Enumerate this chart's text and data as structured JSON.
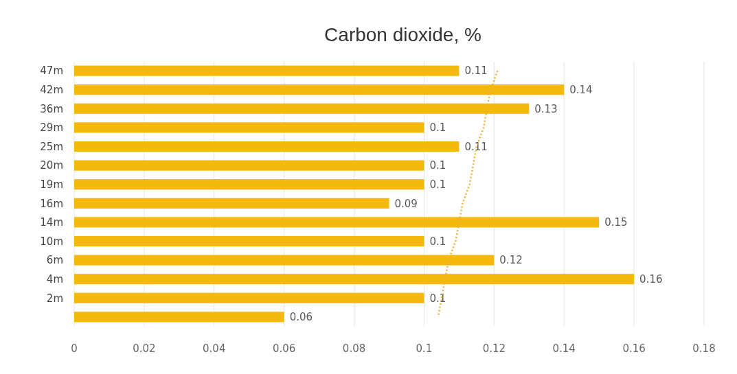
{
  "chart_data": {
    "type": "bar",
    "orientation": "horizontal",
    "title": "Carbon dioxide, %",
    "categories": [
      "47m",
      "42m",
      "36m",
      "29m",
      "25m",
      "20m",
      "19m",
      "16m",
      "14m",
      "10m",
      "6m",
      "4m",
      "2m",
      null
    ],
    "series": [
      {
        "color": "#f5b80c",
        "values": [
          0.11,
          0.14,
          0.13,
          0.1,
          0.11,
          0.1,
          0.1,
          0.09,
          0.15,
          0.1,
          0.12,
          0.16,
          0.1,
          0.06
        ],
        "value_labels": [
          "0.11",
          "0.14",
          "0.13",
          "0.1",
          "0.11",
          "0.1",
          "0.1",
          "0.09",
          "0.15",
          "0.1",
          "0.12",
          "0.16",
          "0.1",
          "0.06"
        ]
      },
      {
        "type": "line",
        "color": "#e8b33a",
        "line_style": "dotted",
        "values": [
          0.121,
          0.119,
          0.118,
          0.117,
          0.115,
          0.114,
          0.113,
          0.111,
          0.11,
          0.109,
          0.107,
          0.106,
          0.105,
          0.104
        ]
      }
    ],
    "xlim": [
      0,
      0.18
    ],
    "xticks": [
      0,
      0.02,
      0.04,
      0.06,
      0.08,
      0.1,
      0.12,
      0.14,
      0.16,
      0.18
    ],
    "grid": "x"
  }
}
